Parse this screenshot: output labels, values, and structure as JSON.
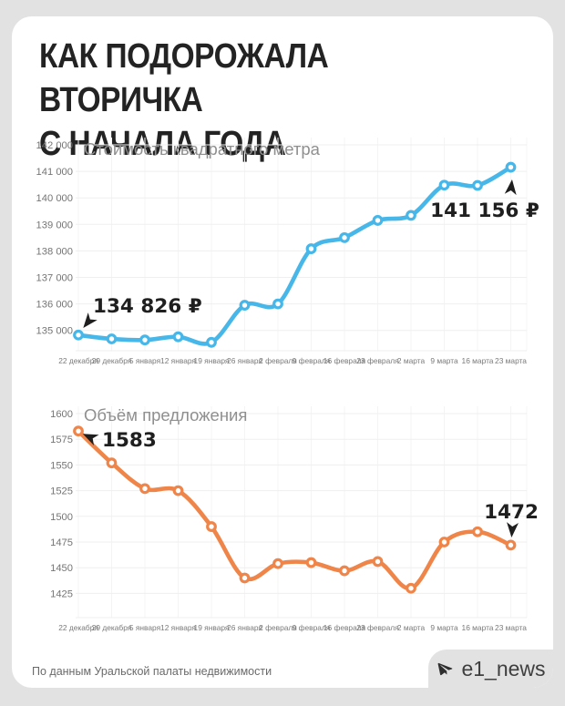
{
  "page": {
    "title": "КАК ПОДОРОЖАЛА ВТОРИЧКА\nС НАЧАЛА ГОДА",
    "source_note": "По данным Уральской палаты недвижимости",
    "channel": {
      "name": "e1_news",
      "icon": "telegram-plane-icon"
    }
  },
  "colors": {
    "page_bg": "#e2e2e2",
    "card_bg": "#ffffff",
    "title_text": "#232323",
    "subtitle_text": "#8f8f8f",
    "axis_text": "#757575",
    "grid_line": "#efefef",
    "price_line": "#47b6e8",
    "volume_line": "#ef8549",
    "annotation_text": "#1f1f1f",
    "footer_text": "#6a6a6a",
    "badge_text": "#3f3f3f"
  },
  "chart_data": [
    {
      "id": "price",
      "type": "line",
      "title": "Стоимость квадратного метра",
      "xlabel": "",
      "ylabel": "",
      "grid": true,
      "legend": false,
      "ylim": [
        134400,
        142000
      ],
      "categories": [
        "22 декабря",
        "29 декабря",
        "5 января",
        "12 января",
        "19 января",
        "26 января",
        "2 февраля",
        "9 февраля",
        "16 февраля",
        "23 февраля",
        "2 марта",
        "9 марта",
        "16 марта",
        "23 марта"
      ],
      "values": [
        134826,
        134680,
        134640,
        134760,
        134550,
        135950,
        136000,
        138080,
        138500,
        139150,
        139340,
        140480,
        140470,
        141156
      ],
      "yticks": [
        {
          "v": 142000,
          "label": "142 000"
        },
        {
          "v": 141000,
          "label": "141 000"
        },
        {
          "v": 140000,
          "label": "140 000"
        },
        {
          "v": 139000,
          "label": "139 000"
        },
        {
          "v": 138000,
          "label": "138 000"
        },
        {
          "v": 137000,
          "label": "137 000"
        },
        {
          "v": 136000,
          "label": "136 000"
        },
        {
          "v": 135000,
          "label": "135 000"
        }
      ],
      "line_color": "#47b6e8",
      "annotations": [
        {
          "text": "134 826 ₽",
          "point_index": 0
        },
        {
          "text": "141 156 ₽",
          "point_index": 13
        }
      ]
    },
    {
      "id": "volume",
      "type": "line",
      "title": "Объём предложения",
      "xlabel": "",
      "ylabel": "",
      "grid": true,
      "legend": false,
      "ylim": [
        1415,
        1600
      ],
      "categories": [
        "22 декабря",
        "29 декабря",
        "5 января",
        "12 января",
        "19 января",
        "26 января",
        "2 февраля",
        "9 февраля",
        "16 февраля",
        "23 февраля",
        "2 марта",
        "9 марта",
        "16 марта",
        "23 марта"
      ],
      "values": [
        1583,
        1552,
        1527,
        1525,
        1490,
        1440,
        1454,
        1455,
        1447,
        1456,
        1430,
        1475,
        1485,
        1472
      ],
      "yticks": [
        {
          "v": 1600,
          "label": "1600"
        },
        {
          "v": 1575,
          "label": "1575"
        },
        {
          "v": 1550,
          "label": "1550"
        },
        {
          "v": 1525,
          "label": "1525"
        },
        {
          "v": 1500,
          "label": "1500"
        },
        {
          "v": 1475,
          "label": "1475"
        },
        {
          "v": 1450,
          "label": "1450"
        },
        {
          "v": 1425,
          "label": "1425"
        }
      ],
      "line_color": "#ef8549",
      "annotations": [
        {
          "text": "1583",
          "point_index": 0
        },
        {
          "text": "1472",
          "point_index": 13
        }
      ]
    }
  ]
}
